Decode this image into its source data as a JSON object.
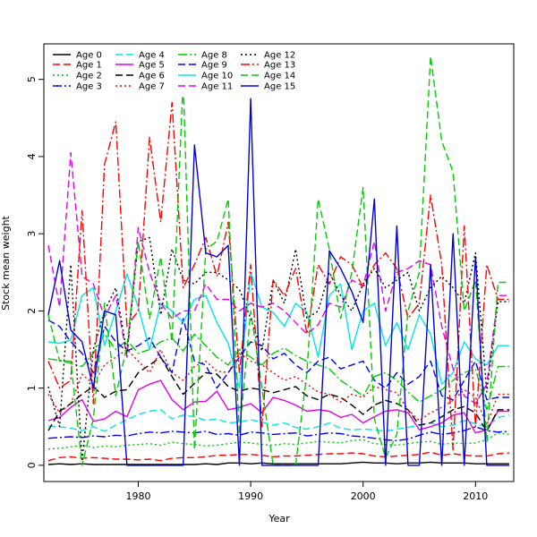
{
  "chart_data": {
    "type": "line",
    "title": "",
    "xlabel": "Year",
    "ylabel": "Stock mean weight",
    "xlim": [
      1971.6,
      2013.4
    ],
    "ylim": [
      -0.21,
      5.46
    ],
    "xticks": [
      1980,
      1990,
      2000,
      2010
    ],
    "yticks": [
      0,
      1,
      2,
      3,
      4,
      5
    ],
    "grid": false,
    "legend_position": "top-left",
    "years": [
      1972,
      1973,
      1974,
      1975,
      1976,
      1977,
      1978,
      1979,
      1980,
      1981,
      1982,
      1983,
      1984,
      1985,
      1986,
      1987,
      1988,
      1989,
      1990,
      1991,
      1992,
      1993,
      1994,
      1995,
      1996,
      1997,
      1998,
      1999,
      2000,
      2001,
      2002,
      2003,
      2004,
      2005,
      2006,
      2007,
      2008,
      2009,
      2010,
      2011,
      2012,
      2013
    ],
    "series": [
      {
        "name": "Age 0",
        "color": "#000000",
        "dash": "",
        "values": [
          0.01,
          0.02,
          0.01,
          0.02,
          0.01,
          0.01,
          0.01,
          0.01,
          0.01,
          0.01,
          0.01,
          0.01,
          0.01,
          0.01,
          0.02,
          0.01,
          0.03,
          0.03,
          0.02,
          0.03,
          0.02,
          0.02,
          0.02,
          0.02,
          0.02,
          0.02,
          0.02,
          0.03,
          0.04,
          0.03,
          0.03,
          0.02,
          0.03,
          0.03,
          0.04,
          0.03,
          0.03,
          0.03,
          0.02,
          0.02,
          0.02,
          0.02
        ]
      },
      {
        "name": "Age 1",
        "color": "#ff0000",
        "dash": "8,4",
        "values": [
          0.06,
          0.1,
          0.11,
          0.09,
          0.1,
          0.09,
          0.08,
          0.08,
          0.07,
          0.08,
          0.06,
          0.09,
          0.1,
          0.1,
          0.11,
          0.13,
          0.13,
          0.14,
          0.14,
          0.13,
          0.11,
          0.12,
          0.12,
          0.13,
          0.14,
          0.15,
          0.15,
          0.16,
          0.15,
          0.12,
          0.11,
          0.12,
          0.13,
          0.14,
          0.17,
          0.13,
          0.15,
          0.13,
          0.12,
          0.12,
          0.15,
          0.16
        ]
      },
      {
        "name": "Age 2",
        "color": "#00cc00",
        "dash": "2,3",
        "values": [
          0.21,
          0.22,
          0.24,
          0.26,
          0.23,
          0.25,
          0.24,
          0.26,
          0.27,
          0.28,
          0.26,
          0.3,
          0.28,
          0.27,
          0.25,
          0.26,
          0.28,
          0.3,
          0.29,
          0.27,
          0.26,
          0.28,
          0.27,
          0.29,
          0.31,
          0.3,
          0.29,
          0.32,
          0.33,
          0.28,
          0.27,
          0.26,
          0.28,
          0.3,
          0.31,
          0.27,
          0.29,
          0.28,
          0.29,
          0.33,
          0.42,
          0.4
        ]
      },
      {
        "name": "Age 3",
        "color": "#0000ff",
        "dash": "10,3,2,3",
        "values": [
          0.35,
          0.36,
          0.37,
          0.36,
          0.38,
          0.37,
          0.39,
          0.38,
          0.41,
          0.43,
          0.42,
          0.44,
          0.43,
          0.42,
          0.44,
          0.4,
          0.41,
          0.39,
          0.43,
          0.42,
          0.4,
          0.41,
          0.42,
          0.38,
          0.4,
          0.42,
          0.41,
          0.38,
          0.37,
          0.35,
          0.33,
          0.32,
          0.34,
          0.39,
          0.43,
          0.4,
          0.42,
          0.45,
          0.5,
          0.45,
          0.43,
          0.44
        ]
      },
      {
        "name": "Age 4",
        "color": "#00e5e5",
        "dash": "8,4",
        "values": [
          0.51,
          0.5,
          0.48,
          0.45,
          0.5,
          0.44,
          0.52,
          0.59,
          0.66,
          0.7,
          0.72,
          0.6,
          0.65,
          0.63,
          0.58,
          0.6,
          0.55,
          0.56,
          0.59,
          0.56,
          0.52,
          0.55,
          0.49,
          0.47,
          0.5,
          0.55,
          0.48,
          0.46,
          0.47,
          0.46,
          0.44,
          0.47,
          0.49,
          0.52,
          0.55,
          0.5,
          0.52,
          0.58,
          0.54,
          0.5,
          0.62,
          0.65
        ]
      },
      {
        "name": "Age 5",
        "color": "#e600e6",
        "dash": "",
        "values": [
          0.58,
          0.62,
          0.75,
          0.85,
          0.57,
          0.6,
          0.7,
          0.63,
          0.98,
          1.05,
          1.1,
          0.85,
          0.72,
          0.82,
          0.83,
          0.96,
          0.72,
          0.75,
          0.8,
          0.68,
          0.88,
          0.84,
          0.78,
          0.7,
          0.72,
          0.7,
          0.62,
          0.66,
          0.55,
          0.63,
          0.7,
          0.72,
          0.68,
          0.46,
          0.5,
          0.55,
          0.65,
          0.68,
          0.42,
          0.46,
          0.7,
          0.7
        ]
      },
      {
        "name": "Age 6",
        "color": "#000000",
        "dash": "8,4",
        "values": [
          0.45,
          0.7,
          0.8,
          0.92,
          1.02,
          0.88,
          0.96,
          0.98,
          1.2,
          1.3,
          1.4,
          1.15,
          0.92,
          1.06,
          1.2,
          1.18,
          1.02,
          0.96,
          1.0,
          0.98,
          0.94,
          0.98,
          1.02,
          0.9,
          0.85,
          0.92,
          0.88,
          0.78,
          0.66,
          0.78,
          0.84,
          0.8,
          0.72,
          0.52,
          0.55,
          0.63,
          0.72,
          0.76,
          0.68,
          0.44,
          0.72,
          0.72
        ]
      },
      {
        "name": "Age 7",
        "color": "#ff0000",
        "dash": "2,3",
        "values": [
          0.92,
          0.68,
          0.8,
          1.18,
          1.05,
          1.3,
          1.4,
          1.5,
          1.35,
          1.2,
          1.5,
          1.2,
          1.1,
          1.28,
          1.35,
          1.22,
          1.2,
          1.45,
          1.35,
          1.3,
          1.2,
          1.1,
          1.15,
          1.05,
          0.95,
          0.92,
          0.82,
          0.92,
          0.88,
          1.02,
          0.98,
          0.94,
          0.72,
          0.58,
          0.68,
          0.75,
          0.84,
          0.98,
          0.88,
          0.52,
          0.92,
          0.92
        ]
      },
      {
        "name": "Age 8",
        "color": "#00cc00",
        "dash": "10,3,2,3",
        "values": [
          1.38,
          1.36,
          1.32,
          1.28,
          1.45,
          1.7,
          1.5,
          1.62,
          1.45,
          1.5,
          1.6,
          1.65,
          1.48,
          1.7,
          1.55,
          1.4,
          1.3,
          1.5,
          1.4,
          1.3,
          1.45,
          1.52,
          1.42,
          1.35,
          1.3,
          1.25,
          1.1,
          1.0,
          0.9,
          1.15,
          1.2,
          1.1,
          0.95,
          0.82,
          0.9,
          0.98,
          1.1,
          1.2,
          1.25,
          0.72,
          1.28,
          1.28
        ]
      },
      {
        "name": "Age 9",
        "color": "#0000ff",
        "dash": "8,4",
        "values": [
          1.88,
          1.8,
          1.6,
          1.45,
          1.2,
          1.8,
          1.6,
          1.48,
          1.55,
          1.65,
          1.4,
          1.2,
          1.9,
          1.35,
          1.3,
          1.0,
          1.2,
          1.4,
          1.6,
          1.55,
          1.38,
          1.45,
          1.3,
          1.2,
          1.35,
          1.4,
          1.25,
          1.3,
          1.35,
          1.1,
          1.0,
          1.2,
          1.05,
          1.15,
          1.35,
          0.9,
          0.85,
          1.1,
          1.35,
          0.85,
          0.88,
          0.88
        ]
      },
      {
        "name": "Age 10",
        "color": "#00e5e5",
        "dash": "",
        "values": [
          1.6,
          1.58,
          1.62,
          2.2,
          2.3,
          1.55,
          2.0,
          2.48,
          2.05,
          1.5,
          2.1,
          2.0,
          1.85,
          2.15,
          2.2,
          1.85,
          1.58,
          1.0,
          2.5,
          2.05,
          1.98,
          1.8,
          2.1,
          1.98,
          1.4,
          2.2,
          2.35,
          1.5,
          2.0,
          2.1,
          1.55,
          1.85,
          1.5,
          1.95,
          1.7,
          1.05,
          1.2,
          1.6,
          1.38,
          1.3,
          1.55,
          1.55
        ]
      },
      {
        "name": "Age 11",
        "color": "#e600e6",
        "dash": "8,4",
        "values": [
          2.85,
          2.05,
          4.05,
          2.45,
          2.35,
          1.92,
          2.2,
          1.4,
          3.08,
          2.5,
          2.1,
          1.9,
          2.0,
          2.0,
          2.35,
          2.15,
          2.15,
          2.0,
          2.1,
          2.05,
          2.1,
          2.0,
          1.85,
          1.7,
          1.82,
          2.1,
          2.05,
          2.4,
          2.32,
          2.9,
          2.0,
          2.5,
          2.55,
          2.65,
          2.6,
          1.8,
          1.25,
          0.9,
          0.8,
          1.05,
          2.2,
          2.2
        ]
      },
      {
        "name": "Age 12",
        "color": "#000000",
        "dash": "2,3",
        "values": [
          1.02,
          0.5,
          2.6,
          0.05,
          1.5,
          2.0,
          2.3,
          1.45,
          2.9,
          2.95,
          1.95,
          2.8,
          2.4,
          2.35,
          2.5,
          2.5,
          2.4,
          2.28,
          1.9,
          1.48,
          2.4,
          2.1,
          2.8,
          1.9,
          2.0,
          2.5,
          2.2,
          2.0,
          2.35,
          2.55,
          2.3,
          2.4,
          2.5,
          2.0,
          2.3,
          2.45,
          2.3,
          2.1,
          2.75,
          0.95,
          2.12,
          2.12
        ]
      },
      {
        "name": "Age 13",
        "color": "#ff0000",
        "dash": "10,3,2,3",
        "values": [
          1.35,
          1.0,
          1.1,
          3.3,
          0.8,
          3.9,
          4.45,
          1.8,
          2.0,
          4.25,
          3.15,
          4.7,
          2.3,
          2.6,
          2.95,
          2.45,
          3.15,
          1.2,
          2.6,
          0.5,
          2.4,
          2.2,
          2.55,
          1.7,
          2.6,
          2.35,
          2.7,
          2.6,
          2.3,
          2.6,
          2.75,
          2.55,
          1.9,
          2.1,
          3.5,
          2.6,
          0.2,
          3.1,
          0.5,
          2.6,
          2.15,
          2.15
        ]
      },
      {
        "name": "Age 14",
        "color": "#00cc00",
        "dash": "8,4",
        "values": [
          1.95,
          1.35,
          1.35,
          0.0,
          0.6,
          2.1,
          0.9,
          1.55,
          2.9,
          1.9,
          2.7,
          1.6,
          5.0,
          0.2,
          2.8,
          2.9,
          3.45,
          0.4,
          2.0,
          1.0,
          0.0,
          0.0,
          0.0,
          1.2,
          3.45,
          2.8,
          1.9,
          2.5,
          3.6,
          0.6,
          0.1,
          0.4,
          2.0,
          2.5,
          5.3,
          4.2,
          3.8,
          2.0,
          2.4,
          0.3,
          2.37,
          2.37
        ]
      },
      {
        "name": "Age 15",
        "color": "#0000dd",
        "dash": "",
        "values": [
          1.95,
          2.65,
          1.75,
          1.6,
          1.0,
          2.0,
          1.95,
          0.0,
          0.0,
          0.0,
          0.0,
          0.0,
          0.0,
          4.15,
          2.75,
          2.7,
          2.85,
          0.0,
          4.75,
          0.0,
          0.0,
          0.0,
          0.0,
          0.0,
          0.0,
          2.78,
          2.55,
          2.25,
          1.85,
          3.45,
          0.0,
          3.1,
          0.0,
          0.0,
          2.6,
          0.0,
          3.0,
          0.0,
          2.7,
          0.0,
          0.0,
          0.0
        ]
      }
    ]
  }
}
